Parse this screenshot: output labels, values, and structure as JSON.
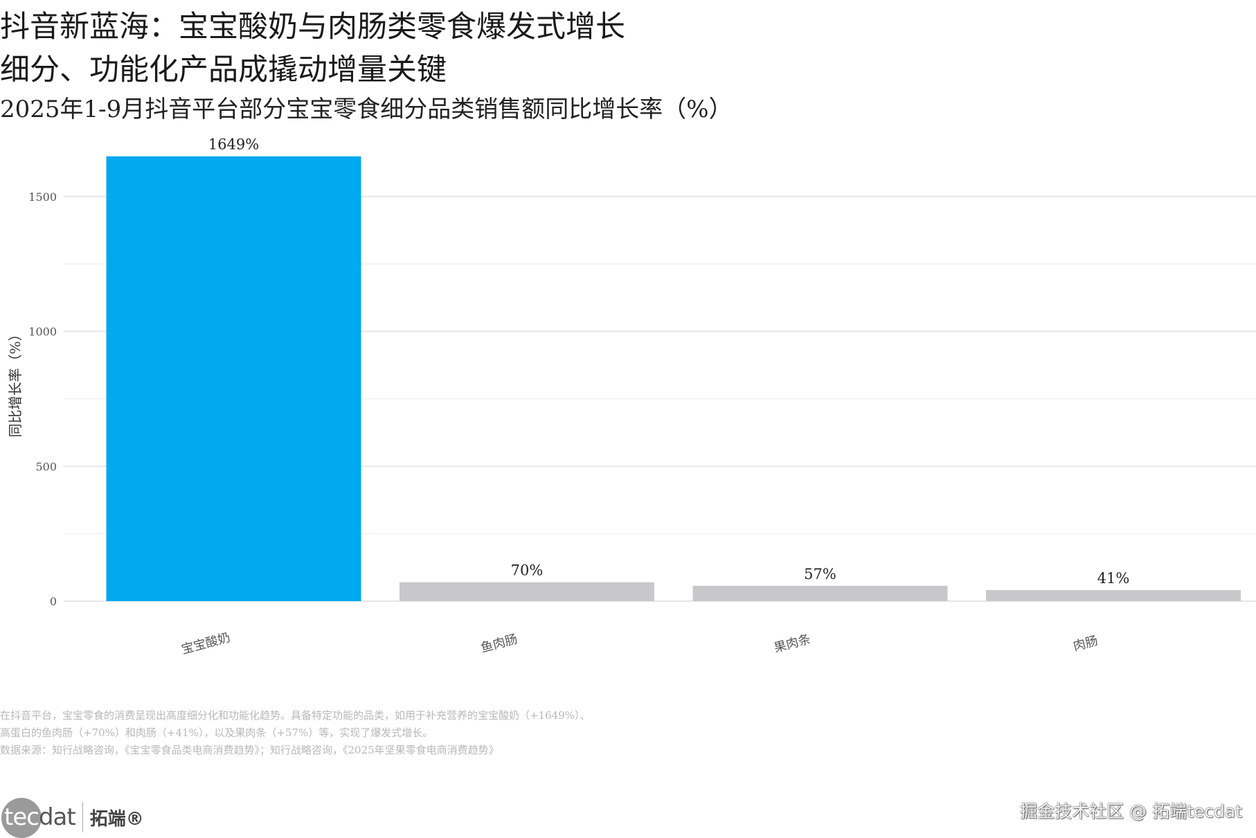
{
  "header": {
    "title_line1": "抖音新蓝海：宝宝酸奶与肉肠类零食爆发式增长",
    "title_line2": "细分、功能化产品成撬动增量关键",
    "subtitle": "2025年1-9月抖音平台部分宝宝零食细分品类销售额同比增长率（%）"
  },
  "chart_data": {
    "type": "bar",
    "categories": [
      "宝宝酸奶",
      "鱼肉肠",
      "果肉条",
      "肉肠"
    ],
    "values": [
      1649,
      70,
      57,
      41
    ],
    "value_labels": [
      "1649%",
      "70%",
      "57%",
      "41%"
    ],
    "ylabel": "同比增长率（%）",
    "xlabel": "",
    "ylim": [
      0,
      1650
    ],
    "yticks": [
      0,
      500,
      1000,
      1500
    ],
    "grid": true,
    "colors": [
      "#00a9f0",
      "#c8c8ca",
      "#c8c8ca",
      "#c8c8ca"
    ]
  },
  "footer": {
    "note_line1": "在抖音平台，宝宝零食的消费呈现出高度细分化和功能化趋势。具备特定功能的品类，如用于补充营养的宝宝酸奶（+1649%）、",
    "note_line2": "高蛋白的鱼肉肠（+70%）和肉肠（+41%），以及果肉条（+57%）等，实现了爆发式增长。",
    "source": "数据来源：知行战略咨询，《宝宝零食品类电商消费趋势》；知行战略咨询，《2025年坚果零食电商消费趋势》"
  },
  "logo": {
    "tec": "tec",
    "dat": "dat",
    "cn": "拓端®"
  },
  "watermark": "掘金技术社区 @ 拓端tecdat"
}
